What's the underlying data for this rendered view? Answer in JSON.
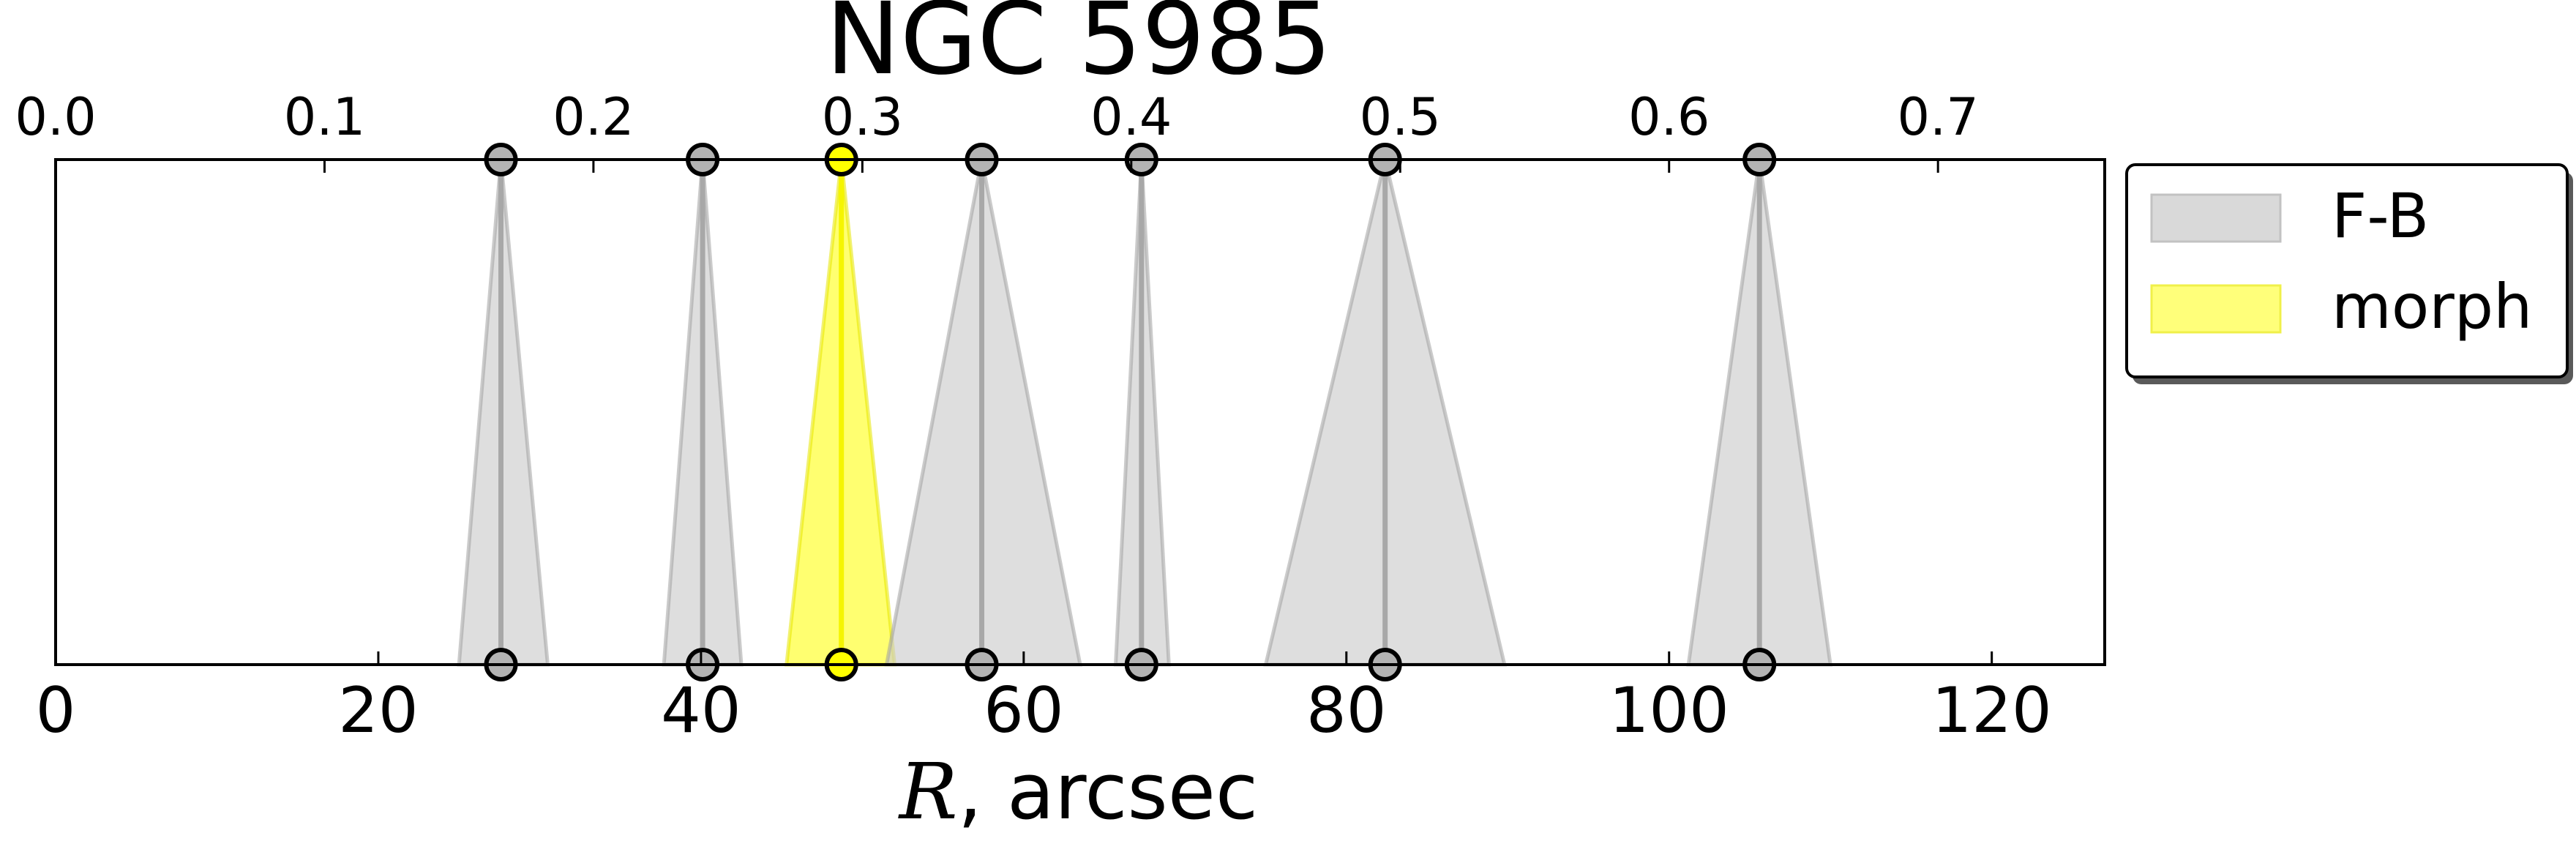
{
  "chart_data": {
    "type": "triangle-markers",
    "title": "NGC 5985",
    "xlabel_symbol": "R",
    "xlabel_rest": ", arcsec",
    "xlim": [
      0,
      127
    ],
    "xticks": [
      "0",
      "20",
      "40",
      "60",
      "80",
      "100",
      "120"
    ],
    "xtick_values": [
      0,
      20,
      40,
      60,
      80,
      100,
      120
    ],
    "top_axis_ticks": [
      "0.0",
      "0.1",
      "0.2",
      "0.3",
      "0.4",
      "0.5",
      "0.6",
      "0.7"
    ],
    "top_axis_scale": 0.006,
    "colors": {
      "fb_fill": "#cccccc",
      "fb_line": "#a0a0a0",
      "morph_fill": "#ffff33",
      "morph_line": "#e6e600"
    },
    "legend": {
      "position": "outside-right",
      "entries": [
        {
          "label": "F-B",
          "color": "#d9d9d9"
        },
        {
          "label": "morph",
          "color": "#ffff7a"
        }
      ]
    },
    "series": [
      {
        "name": "F-B",
        "center": 27.6,
        "low": 25.0,
        "high": 30.5
      },
      {
        "name": "F-B",
        "center": 40.1,
        "low": 37.7,
        "high": 42.5
      },
      {
        "name": "morph",
        "center": 48.7,
        "low": 45.3,
        "high": 52.0
      },
      {
        "name": "F-B",
        "center": 57.4,
        "low": 51.5,
        "high": 63.5
      },
      {
        "name": "F-B",
        "center": 67.3,
        "low": 65.7,
        "high": 69.0
      },
      {
        "name": "F-B",
        "center": 82.4,
        "low": 75.0,
        "high": 89.8
      },
      {
        "name": "F-B",
        "center": 105.6,
        "low": 101.2,
        "high": 110.0
      }
    ]
  }
}
